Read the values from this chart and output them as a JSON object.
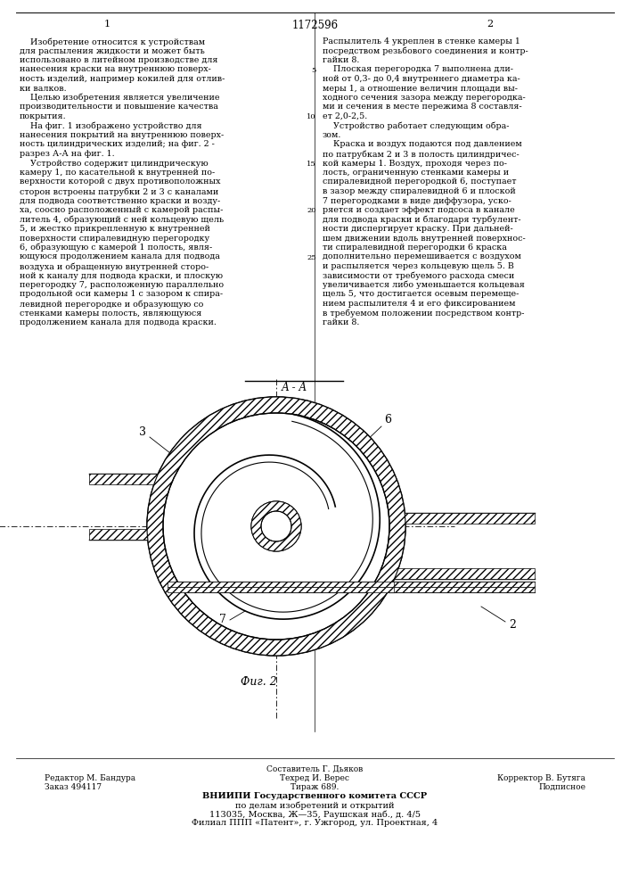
{
  "page_width": 7.07,
  "page_height": 10.0,
  "dpi": 100,
  "background": "#ffffff",
  "patent_number": "1172596",
  "col1_label": "1",
  "col2_label": "2",
  "col1_text_lines": [
    "    Изобретение относится к устройствам",
    "для распыления жидкости и может быть",
    "использовано в литейном производстве для",
    "нанесения краски на внутреннюю поверх-",
    "ность изделий, например кокилей для отлив-",
    "ки валков.",
    "    Целью изобретения является увеличение",
    "производительности и повышение качества",
    "покрытия.",
    "    На фиг. 1 изображено устройство для",
    "нанесения покрытий на внутреннюю поверх-",
    "ность цилиндрических изделий; на фиг. 2 -",
    "разрез А-А на фиг. 1.",
    "    Устройство содержит цилиндрическую",
    "камеру 1, по касательной к внутренней по-",
    "верхности которой с двух противоположных",
    "сторон встроены патрубки 2 и 3 с каналами",
    "для подвода соответственно краски и возду-",
    "ха, соосно расположенный с камерой распы-",
    "литель 4, образующий с ней кольцевую щель",
    "5, и жестко прикрепленную к внутренней",
    "поверхности спиралевидную перегородку",
    "6, образующую с камерой 1 полость, явля-",
    "ющуюся продолжением канала для подвода",
    "воздуха и обращенную внутренней сторо-",
    "ной к каналу для подвода краски, и плоскую",
    "перегородку 7, расположенную параллельно",
    "продольной оси камеры 1 с зазором к спира-",
    "левидной перегородке и образующую со",
    "стенками камеры полость, являющуюся",
    "продолжением канала для подвода краски."
  ],
  "col2_text_lines": [
    "Распылитель 4 укреплен в стенке камеры 1",
    "посредством резьбового соединения и контр-",
    "гайки 8.",
    "    Плоская перегородка 7 выполнена дли-",
    "ной от 0,3- до 0,4 внутреннего диаметра ка-",
    "меры 1, а отношение величин площади вы-",
    "ходного сечения зазора между перегородка-",
    "ми и сечения в месте пережима 8 составля-",
    "ет 2,0-2,5.",
    "    Устройство работает следующим обра-",
    "зом.",
    "    Краска и воздух подаются под давлением",
    "по патрубкам 2 и 3 в полость цилиндричес-",
    "кой камеры 1. Воздух, проходя через по-",
    "лость, ограниченную стенками камеры и",
    "спиралевидной перегородкой 6, поступает",
    "в зазор между спиралевидной 6 и плоской",
    "7 перегородками в виде диффузора, уско-",
    "ряется и создает эффект подсоса в канале",
    "для подвода краски и благодаря турбулент-",
    "ности диспергирует краску. При дальней-",
    "шем движении вдоль внутренней поверхнос-",
    "ти спиралевидной перегородки 6 краска",
    "дополнительно перемешивается с воздухом",
    "и распыляется через кольцевую щель 5. В",
    "зависимости от требуемого расхода смеси",
    "увеличивается либо уменьшается кольцевая",
    "щель 5, что достигается осевым перемеще-",
    "нием распылителя 4 и его фиксированием",
    "в требуемом положении посредством контр-",
    "гайки 8."
  ],
  "col2_line_numbers": [
    [
      4,
      5
    ],
    [
      9,
      10
    ],
    [
      14,
      15
    ],
    [
      19,
      20
    ],
    [
      24,
      25
    ]
  ],
  "fig_section_label": "А - А",
  "fig_label": "Фиг. 2",
  "footer_lines": [
    [
      "center",
      0.5,
      "Составитель Г. Дьяков"
    ],
    [
      "left",
      0.07,
      "Редактор М. Бандура"
    ],
    [
      "center",
      0.43,
      "Техред И. Верес"
    ],
    [
      "right",
      0.93,
      "Корректор В. Бутяга"
    ],
    [
      "left",
      0.07,
      "Заказ 494117"
    ],
    [
      "center",
      0.43,
      "Тираж 689."
    ],
    [
      "right",
      0.93,
      "Подписное"
    ],
    [
      "center",
      0.5,
      "ВНИИПИ Государственного комитета СССР"
    ],
    [
      "center",
      0.5,
      "по делам изобретений и открытий"
    ],
    [
      "center",
      0.5,
      "113035, Москва, Ж—35, Раушская наб., д. 4/5"
    ],
    [
      "center",
      0.5,
      "Филиал ППП «Патент», г. Ужгород, ул. Проектная, 4"
    ]
  ]
}
